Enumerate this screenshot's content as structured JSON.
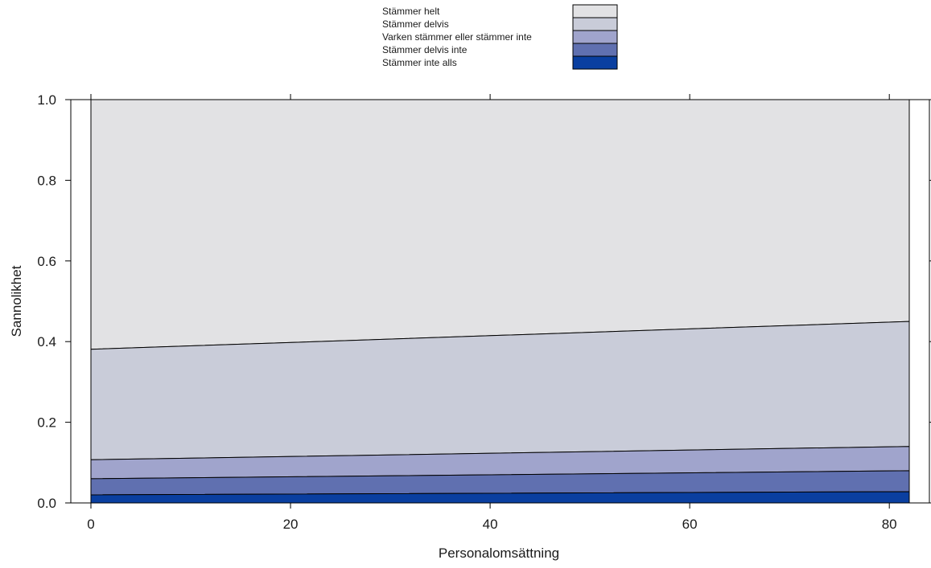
{
  "chart_data": {
    "type": "area",
    "stacked": true,
    "title": "",
    "xlabel": "Personalomsättning",
    "ylabel": "Sannolikhet",
    "xlim": [
      0,
      82
    ],
    "ylim": [
      0,
      1
    ],
    "xticks": [
      0,
      20,
      40,
      60,
      80
    ],
    "yticks": [
      "0.0",
      "0.2",
      "0.4",
      "0.6",
      "0.8",
      "1.0"
    ],
    "x": [
      0,
      82
    ],
    "legend_position": "top-center",
    "series": [
      {
        "name": "Stämmer inte alls",
        "color": "#0a3fa0",
        "cumulative": [
          0.02,
          0.028
        ]
      },
      {
        "name": "Stämmer delvis inte",
        "color": "#6070b0",
        "cumulative": [
          0.06,
          0.08
        ]
      },
      {
        "name": "Varken stämmer eller stämmer inte",
        "color": "#a0a4cc",
        "cumulative": [
          0.107,
          0.14
        ]
      },
      {
        "name": "Stämmer delvis",
        "color": "#c9ccd9",
        "cumulative": [
          0.381,
          0.45
        ]
      },
      {
        "name": "Stämmer helt",
        "color": "#e2e2e4",
        "cumulative": [
          1.0,
          1.0
        ]
      }
    ],
    "legend_order": [
      "Stämmer helt",
      "Stämmer delvis",
      "Varken stämmer eller stämmer inte",
      "Stämmer delvis inte",
      "Stämmer inte alls"
    ]
  }
}
